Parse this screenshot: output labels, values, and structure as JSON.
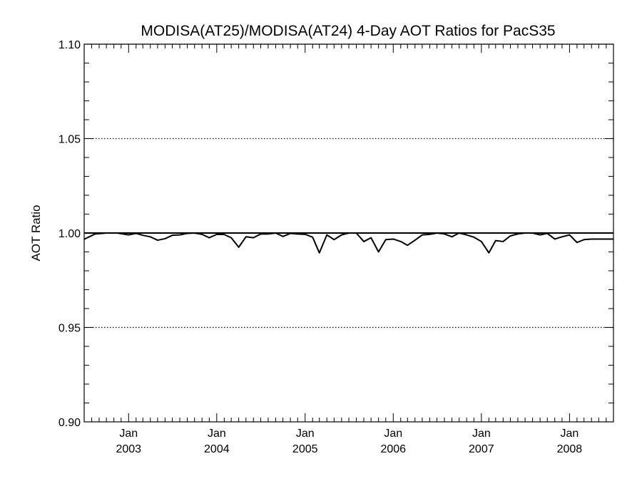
{
  "chart_data": {
    "type": "line",
    "title": "MODISA(AT25)/MODISA(AT24) 4-Day AOT Ratios for PacS35",
    "xlabel": "",
    "ylabel": "AOT Ratio",
    "ylim": [
      0.9,
      1.1
    ],
    "y_ticks": [
      "0.90",
      "0.95",
      "1.00",
      "1.05",
      "1.10"
    ],
    "y_tick_values": [
      0.9,
      0.95,
      1.0,
      1.05,
      1.1
    ],
    "grid_y_values": [
      0.95,
      1.05,
      1.1
    ],
    "reference_line_y": 1.0,
    "xlim": [
      "2002-07-01",
      "2008-07-01"
    ],
    "x_ticks": [
      {
        "date": "2003-01-01",
        "month": "Jan",
        "year": "2003"
      },
      {
        "date": "2004-01-01",
        "month": "Jan",
        "year": "2004"
      },
      {
        "date": "2005-01-01",
        "month": "Jan",
        "year": "2005"
      },
      {
        "date": "2006-01-01",
        "month": "Jan",
        "year": "2006"
      },
      {
        "date": "2007-01-01",
        "month": "Jan",
        "year": "2007"
      },
      {
        "date": "2008-01-01",
        "month": "Jan",
        "year": "2008"
      }
    ],
    "series": [
      {
        "x": [
          "2002-07-01",
          "2002-08-15",
          "2002-10-01",
          "2002-11-15",
          "2003-01-01",
          "2003-02-01",
          "2003-03-01",
          "2003-04-01",
          "2003-05-01",
          "2003-06-01",
          "2003-07-01",
          "2003-08-01",
          "2003-09-01",
          "2003-10-01",
          "2003-11-01",
          "2003-12-01",
          "2004-01-01",
          "2004-02-01",
          "2004-03-01",
          "2004-04-01",
          "2004-05-01",
          "2004-06-01",
          "2004-07-01",
          "2004-08-01",
          "2004-09-01",
          "2004-10-01",
          "2004-11-01",
          "2004-12-01",
          "2005-01-01",
          "2005-02-01",
          "2005-03-01",
          "2005-04-01",
          "2005-05-01",
          "2005-06-01",
          "2005-07-01",
          "2005-08-01",
          "2005-09-01",
          "2005-10-01",
          "2005-11-01",
          "2005-12-01",
          "2006-01-01",
          "2006-02-01",
          "2006-03-01",
          "2006-04-01",
          "2006-05-01",
          "2006-06-01",
          "2006-07-01",
          "2006-08-01",
          "2006-09-01",
          "2006-10-01",
          "2006-11-01",
          "2006-12-01",
          "2007-01-01",
          "2007-02-01",
          "2007-03-01",
          "2007-04-01",
          "2007-05-01",
          "2007-06-01",
          "2007-07-01",
          "2007-08-01",
          "2007-09-01",
          "2007-10-01",
          "2007-11-01",
          "2007-12-01",
          "2008-01-01",
          "2008-02-01",
          "2008-03-01",
          "2008-04-01",
          "2008-05-01",
          "2008-06-01",
          "2008-07-01"
        ],
        "y": [
          0.9967,
          0.9995,
          1.0,
          1.0,
          0.999,
          0.9998,
          0.9988,
          0.998,
          0.9962,
          0.997,
          0.9988,
          0.999,
          0.9998,
          1.0,
          0.9993,
          0.9975,
          0.9993,
          0.9992,
          0.9975,
          0.9925,
          0.998,
          0.9975,
          0.9995,
          0.9995,
          1.0,
          0.9982,
          0.9998,
          0.9995,
          0.9993,
          0.9978,
          0.9895,
          0.999,
          0.9965,
          0.999,
          1.0,
          1.0,
          0.9955,
          0.9975,
          0.99,
          0.9965,
          0.9968,
          0.9955,
          0.9935,
          0.9962,
          0.999,
          0.9993,
          1.0,
          0.9995,
          0.998,
          1.0,
          0.999,
          0.9978,
          0.9955,
          0.9895,
          0.996,
          0.9955,
          0.9985,
          0.9995,
          1.0,
          1.0,
          0.999,
          0.9998,
          0.9968,
          0.998,
          0.999,
          0.995,
          0.9965,
          0.9968,
          0.9968,
          0.9968,
          0.9968
        ]
      }
    ],
    "grid": "dotted horizontal at 0.95, 1.05 and 1.10",
    "legend": "none"
  }
}
